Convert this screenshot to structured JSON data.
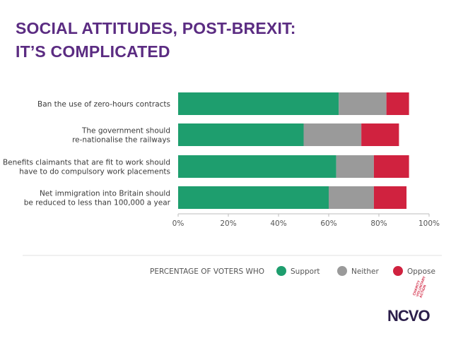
{
  "header": {
    "title_line1": "SOCIAL ATTITUDES, POST-BREXIT:",
    "title_line2": "IT’S COMPLICATED",
    "title_color": "#5b2c82"
  },
  "chart_data": {
    "type": "bar",
    "orientation": "horizontal",
    "stacked": true,
    "categories": [
      [
        "Ban the use of zero-hours contracts"
      ],
      [
        "The government should",
        "re-nationalise the railways"
      ],
      [
        "Benefits claimants that are fit to work should",
        "have to do compulsory work placements"
      ],
      [
        "Net immigration into Britain should",
        "be reduced to less than 100,000 a year"
      ]
    ],
    "series": [
      {
        "name": "Support",
        "color": "#1e9e6e",
        "values": [
          64,
          50,
          63,
          60
        ]
      },
      {
        "name": "Neither",
        "color": "#9a9a9a",
        "values": [
          19,
          23,
          15,
          18
        ]
      },
      {
        "name": "Oppose",
        "color": "#d0223f",
        "values": [
          9,
          15,
          14,
          13
        ]
      }
    ],
    "xlim": [
      0,
      100
    ],
    "xticks": [
      "0%",
      "20%",
      "40%",
      "60%",
      "80%",
      "100%"
    ],
    "xlabel": "",
    "ylabel": "",
    "grid": false,
    "legend_title": "PERCENTAGE OF VOTERS WHO",
    "legend_position": "bottom"
  },
  "footer": {
    "logo_main": "NCVO",
    "logo_side": [
      "CHARITY",
      "VOLUNTARY",
      "ACTION"
    ]
  }
}
